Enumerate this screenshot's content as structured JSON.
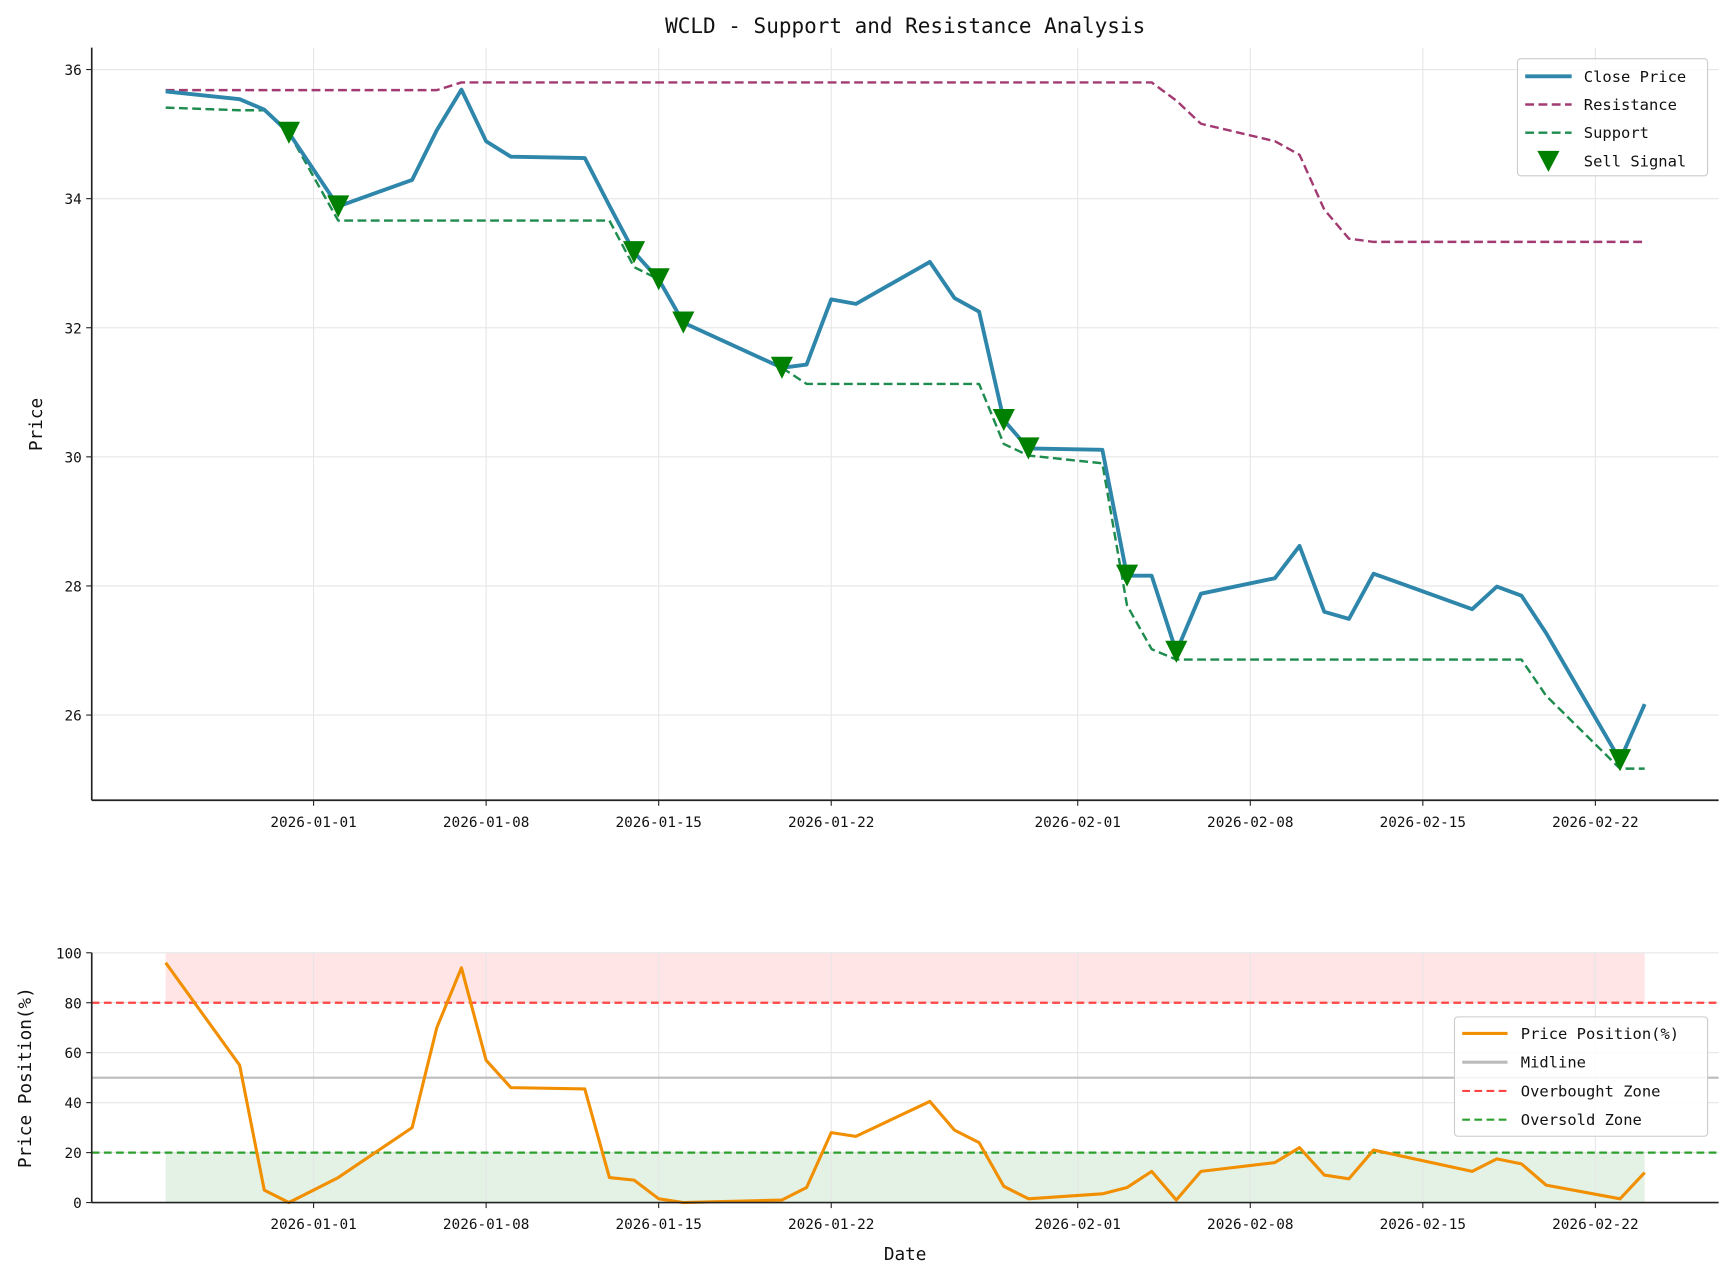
{
  "chart_data": [
    {
      "type": "line",
      "title": "WCLD - Support and Resistance Analysis",
      "xlabel": "",
      "ylabel": "Price",
      "ylim": [
        24.68,
        36.34
      ],
      "xlim": [
        "2025-12-23",
        "2026-02-27"
      ],
      "yticks": [
        26,
        28,
        30,
        32,
        34,
        36
      ],
      "xticks": [
        "2026-01-01",
        "2026-01-08",
        "2026-01-15",
        "2026-01-22",
        "2026-02-01",
        "2026-02-08",
        "2026-02-15",
        "2026-02-22"
      ],
      "grid": true,
      "legend_placement": "top-right",
      "x": [
        "2025-12-26",
        "2025-12-29",
        "2025-12-30",
        "2025-12-31",
        "2026-01-02",
        "2026-01-05",
        "2026-01-06",
        "2026-01-07",
        "2026-01-08",
        "2026-01-09",
        "2026-01-12",
        "2026-01-13",
        "2026-01-14",
        "2026-01-15",
        "2026-01-16",
        "2026-01-20",
        "2026-01-21",
        "2026-01-22",
        "2026-01-23",
        "2026-01-26",
        "2026-01-27",
        "2026-01-28",
        "2026-01-29",
        "2026-01-30",
        "2026-02-02",
        "2026-02-03",
        "2026-02-04",
        "2026-02-05",
        "2026-02-06",
        "2026-02-09",
        "2026-02-10",
        "2026-02-11",
        "2026-02-12",
        "2026-02-13",
        "2026-02-17",
        "2026-02-18",
        "2026-02-19",
        "2026-02-20",
        "2026-02-23",
        "2026-02-24"
      ],
      "series": [
        {
          "name": "Close Price",
          "color": "#2e86ab",
          "style": "solid",
          "values": [
            35.66,
            35.54,
            35.38,
            35.02,
            33.88,
            34.29,
            35.06,
            35.69,
            34.89,
            34.65,
            34.63,
            33.89,
            33.17,
            32.75,
            32.08,
            31.38,
            31.43,
            32.44,
            32.37,
            33.02,
            32.46,
            32.25,
            30.57,
            30.13,
            30.11,
            28.16,
            28.16,
            26.98,
            27.88,
            28.12,
            28.62,
            27.6,
            27.49,
            28.19,
            27.64,
            27.99,
            27.85,
            27.27,
            25.3,
            26.17
          ]
        },
        {
          "name": "Resistance",
          "color": "#a23b72",
          "style": "dashed",
          "values": [
            35.68,
            35.68,
            35.68,
            35.68,
            35.68,
            35.68,
            35.68,
            35.8,
            35.8,
            35.8,
            35.8,
            35.8,
            35.8,
            35.8,
            35.8,
            35.8,
            35.8,
            35.8,
            35.8,
            35.8,
            35.8,
            35.8,
            35.8,
            35.8,
            35.8,
            35.8,
            35.8,
            35.52,
            35.16,
            34.89,
            34.68,
            33.83,
            33.38,
            33.33,
            33.33,
            33.33,
            33.33,
            33.33,
            33.33,
            33.33
          ]
        },
        {
          "name": "Support",
          "color": "#1e8c4e",
          "style": "dashed",
          "values": [
            35.41,
            35.37,
            35.37,
            35.02,
            33.66,
            33.66,
            33.66,
            33.66,
            33.66,
            33.66,
            33.66,
            33.66,
            32.94,
            32.75,
            32.08,
            31.38,
            31.13,
            31.13,
            31.13,
            31.13,
            31.13,
            31.13,
            30.2,
            30.02,
            29.9,
            27.7,
            27.02,
            26.86,
            26.86,
            26.86,
            26.86,
            26.86,
            26.86,
            26.86,
            26.86,
            26.86,
            26.86,
            26.3,
            25.17,
            25.17
          ]
        }
      ],
      "markers": {
        "name": "Sell Signal",
        "color": "#008000",
        "symbol": "triangle-down",
        "x": [
          "2025-12-31",
          "2026-01-02",
          "2026-01-14",
          "2026-01-15",
          "2026-01-16",
          "2026-01-20",
          "2026-01-29",
          "2026-01-30",
          "2026-02-03",
          "2026-02-05",
          "2026-02-23"
        ],
        "y": [
          35.02,
          33.88,
          33.17,
          32.75,
          32.08,
          31.38,
          30.57,
          30.13,
          28.16,
          26.98,
          25.3
        ]
      }
    },
    {
      "type": "line",
      "xlabel": "Date",
      "ylabel": "Price Position(%)",
      "ylim": [
        0,
        100
      ],
      "yticks": [
        0,
        20,
        40,
        60,
        80,
        100
      ],
      "xticks": [
        "2026-01-01",
        "2026-01-08",
        "2026-01-15",
        "2026-01-22",
        "2026-02-01",
        "2026-02-08",
        "2026-02-15",
        "2026-02-22"
      ],
      "grid": true,
      "legend_placement": "center-right",
      "series": [
        {
          "name": "Price Position(%)",
          "color": "#f18f01",
          "style": "solid",
          "values": [
            96,
            55,
            5,
            0,
            10,
            30,
            70,
            94,
            57,
            46,
            45.5,
            10,
            9,
            1.5,
            0,
            1,
            6,
            28,
            26.5,
            40.5,
            29,
            24,
            6.5,
            1.5,
            3.5,
            6,
            12.5,
            1,
            12.5,
            16,
            22,
            11,
            9.5,
            21,
            12.5,
            17.5,
            15.5,
            7,
            1.5,
            12
          ]
        }
      ],
      "reference_lines": [
        {
          "name": "Midline",
          "value": 50,
          "color": "#bbbbbb",
          "style": "solid"
        },
        {
          "name": "Overbought Zone",
          "value": 80,
          "color": "#ff4444",
          "style": "dashed"
        },
        {
          "name": "Oversold Zone",
          "value": 20,
          "color": "#2ca02c",
          "style": "dashed"
        }
      ],
      "zones": [
        {
          "from": 80,
          "to": 100,
          "color": "#ffcccc"
        },
        {
          "from": 0,
          "to": 20,
          "color": "#c8e6c9"
        }
      ]
    }
  ]
}
